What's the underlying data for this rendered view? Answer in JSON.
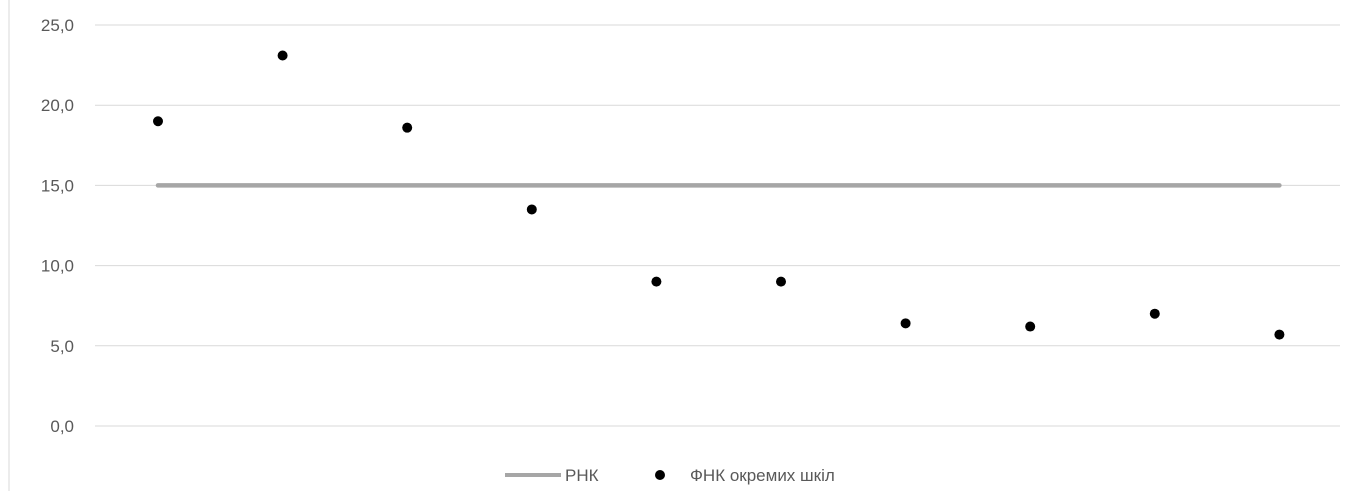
{
  "chart_data": {
    "type": "scatter",
    "title": "",
    "xlabel": "",
    "ylabel": "",
    "ylim": [
      0,
      25
    ],
    "y_ticks": [
      "0,0",
      "5,0",
      "10,0",
      "15,0",
      "20,0",
      "25,0"
    ],
    "x": [
      1,
      2,
      3,
      4,
      5,
      6,
      7,
      8,
      9,
      10
    ],
    "grid": true,
    "legend_position": "bottom",
    "series": [
      {
        "name": "РНК",
        "type": "line",
        "color": "#a6a6a6",
        "values": [
          15,
          15,
          15,
          15,
          15,
          15,
          15,
          15,
          15,
          15
        ]
      },
      {
        "name": "ФНК окремих шкіл",
        "type": "scatter",
        "color": "#000000",
        "values": [
          19.0,
          23.1,
          18.6,
          13.5,
          9.0,
          9.0,
          6.4,
          6.2,
          7.0,
          5.7
        ]
      }
    ]
  }
}
